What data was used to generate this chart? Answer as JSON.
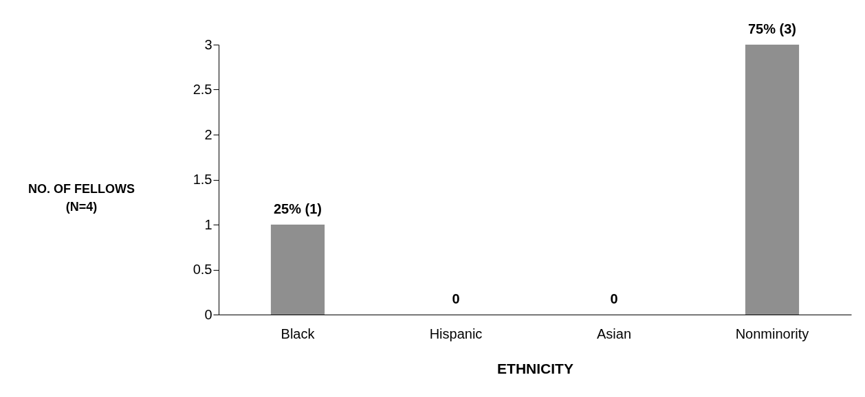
{
  "chart_data": {
    "type": "bar",
    "xlabel": "ETHNICITY",
    "ylabel": "NO. OF FELLOWS\n(N=4)",
    "categories": [
      "Black",
      "Hispanic",
      "Asian",
      "Nonminority"
    ],
    "values": [
      1,
      0,
      0,
      3
    ],
    "value_labels": [
      "25% (1)",
      "0",
      "0",
      "75% (3)"
    ],
    "color": "#8f8f8f",
    "ylim": [
      0,
      3
    ],
    "yticks": [
      0,
      0.5,
      1,
      1.5,
      2,
      2.5,
      3
    ],
    "grid": false
  }
}
